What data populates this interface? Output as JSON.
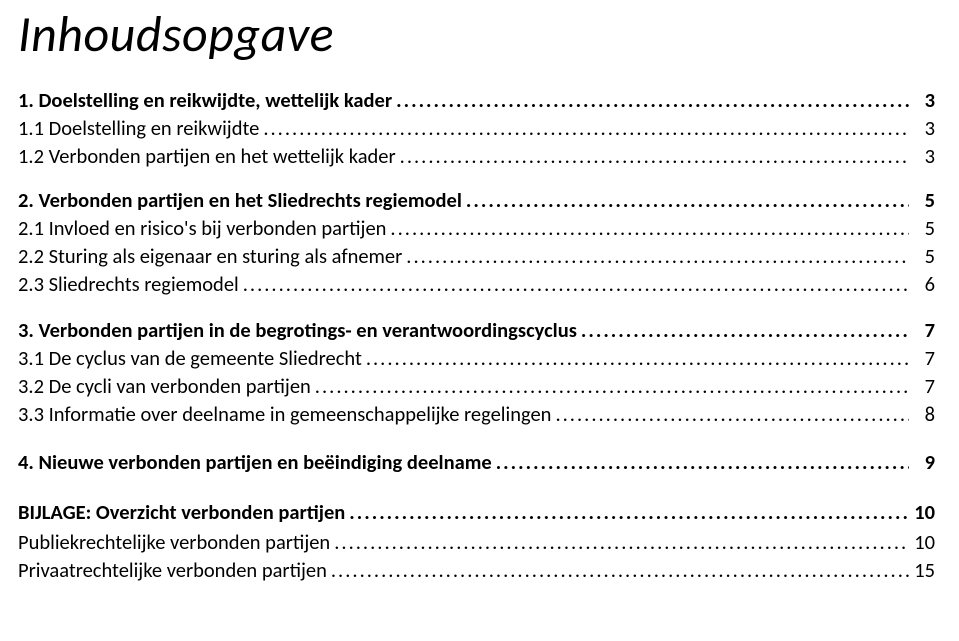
{
  "title": "Inhoudsopgave",
  "s1": {
    "label": "1. Doelstelling en reikwijdte, wettelijk kader",
    "page": "3"
  },
  "s1_1": {
    "label": "1.1 Doelstelling en reikwijdte",
    "page": "3"
  },
  "s1_2": {
    "label": "1.2 Verbonden partijen en het wettelijk kader",
    "page": "3"
  },
  "s2": {
    "label": "2. Verbonden partijen en het Sliedrechts regiemodel",
    "page": "5"
  },
  "s2_1": {
    "label": "2.1 Invloed en risico's bij verbonden partijen",
    "page": "5"
  },
  "s2_2": {
    "label": "2.2 Sturing als eigenaar en sturing als afnemer",
    "page": "5"
  },
  "s2_3": {
    "label": "2.3 Sliedrechts regiemodel",
    "page": "6"
  },
  "s3": {
    "label": "3. Verbonden partijen in de begrotings- en verantwoordingscyclus",
    "page": "7"
  },
  "s3_1": {
    "label": "3.1 De cyclus van de gemeente Sliedrecht",
    "page": "7"
  },
  "s3_2": {
    "label": "3.2 De cycli van verbonden partijen",
    "page": "7"
  },
  "s3_3": {
    "label": "3.3 Informatie over deelname in gemeenschappelijke regelingen",
    "page": "8"
  },
  "s4": {
    "label": "4. Nieuwe verbonden partijen en beëindiging deelname",
    "page": "9"
  },
  "b": {
    "label": "BIJLAGE: Overzicht verbonden partijen",
    "page": "10"
  },
  "b1": {
    "label": "Publiekrechtelijke verbonden partijen",
    "page": "10"
  },
  "b2": {
    "label": "Privaatrechtelijke verbonden partijen",
    "page": "15"
  }
}
